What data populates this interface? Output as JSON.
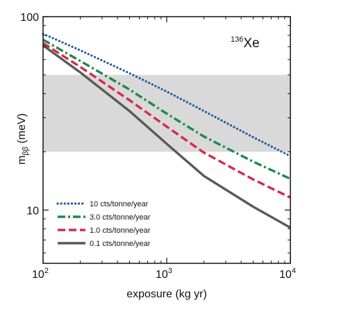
{
  "chart_data": {
    "type": "line",
    "title": "",
    "annotation": {
      "mass_number": "136",
      "element": "Xe"
    },
    "xlabel": "exposure (kg yr)",
    "ylabel": {
      "main": "m",
      "subscript": "ββ",
      "unit": " (meV)"
    },
    "xscale": "log",
    "yscale": "log",
    "xlim": [
      100,
      10000
    ],
    "ylim": [
      5.3,
      100
    ],
    "x_ticks": [
      {
        "value": 100,
        "base": "10",
        "exp": "2"
      },
      {
        "value": 1000,
        "base": "10",
        "exp": "3"
      },
      {
        "value": 10000,
        "base": "10",
        "exp": "4"
      }
    ],
    "y_ticks": [
      {
        "value": 10,
        "label": "10"
      },
      {
        "value": 100,
        "label": "100"
      }
    ],
    "band": {
      "ymin": 20,
      "ymax": 50,
      "color": "#d9d9d9"
    },
    "legend_position": "lower-left",
    "grid": false,
    "series": [
      {
        "name": "10  cts/tonne/year",
        "color": "#1f5a9a",
        "style": "dotted",
        "points": [
          [
            100,
            81.5
          ],
          [
            200,
            67.0
          ],
          [
            500,
            51.0
          ],
          [
            1000,
            41.0
          ],
          [
            2000,
            32.5
          ],
          [
            5000,
            23.8
          ],
          [
            10000,
            19.0
          ]
        ]
      },
      {
        "name": "3.0 cts/tonne/year",
        "color": "#1a8a4a",
        "style": "dashdot",
        "points": [
          [
            100,
            76.0
          ],
          [
            200,
            59.0
          ],
          [
            500,
            42.0
          ],
          [
            1000,
            31.5
          ],
          [
            2000,
            24.0
          ],
          [
            5000,
            17.8
          ],
          [
            10000,
            14.5
          ]
        ]
      },
      {
        "name": "1.0 cts/tonne/year",
        "color": "#d8284a",
        "style": "dashed",
        "points": [
          [
            100,
            73.0
          ],
          [
            200,
            55.0
          ],
          [
            500,
            37.0
          ],
          [
            1000,
            27.0
          ],
          [
            2000,
            19.8
          ],
          [
            5000,
            14.4
          ],
          [
            10000,
            11.6
          ]
        ]
      },
      {
        "name": "0.1 cts/tonne/year",
        "color": "#595959",
        "style": "solid",
        "points": [
          [
            100,
            71.0
          ],
          [
            200,
            51.5
          ],
          [
            500,
            32.5
          ],
          [
            1000,
            22.0
          ],
          [
            2000,
            15.0
          ],
          [
            5000,
            10.4
          ],
          [
            10000,
            8.1
          ]
        ]
      }
    ]
  }
}
